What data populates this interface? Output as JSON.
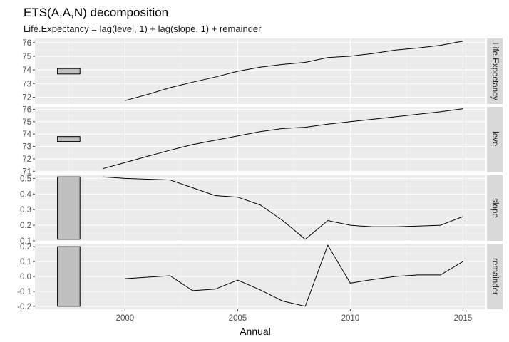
{
  "chart_data": {
    "type": "line",
    "title": "ETS(A,A,N) decomposition",
    "subtitle": "Life.Expectancy = lag(level, 1) + lag(slope, 1) + remainder",
    "xlabel": "Annual",
    "xlim": [
      1996,
      2016
    ],
    "x_ticks": [
      2000,
      2005,
      2010,
      2015
    ],
    "grid": true,
    "facets": [
      {
        "strip": "Life.Expectancy",
        "ylim": [
          71.5,
          76.3
        ],
        "y_ticks": [
          72,
          73,
          74,
          75,
          76
        ],
        "scale_bar": [
          73.7,
          74.1
        ],
        "x": [
          2000,
          2001,
          2002,
          2003,
          2004,
          2005,
          2006,
          2007,
          2008,
          2009,
          2010,
          2011,
          2012,
          2013,
          2014,
          2015
        ],
        "values": [
          71.75,
          72.2,
          72.7,
          73.1,
          73.47,
          73.9,
          74.2,
          74.4,
          74.55,
          74.9,
          75.0,
          75.2,
          75.45,
          75.6,
          75.8,
          76.1
        ]
      },
      {
        "strip": "level",
        "ylim": [
          70.9,
          76.2
        ],
        "y_ticks": [
          71,
          72,
          73,
          74,
          75,
          76
        ],
        "scale_bar": [
          73.4,
          73.8
        ],
        "x": [
          1999,
          2000,
          2001,
          2002,
          2003,
          2004,
          2005,
          2006,
          2007,
          2008,
          2009,
          2010,
          2011,
          2012,
          2013,
          2014,
          2015
        ],
        "values": [
          71.2,
          71.7,
          72.2,
          72.7,
          73.15,
          73.5,
          73.85,
          74.2,
          74.45,
          74.55,
          74.8,
          75.0,
          75.2,
          75.4,
          75.6,
          75.8,
          76.05
        ]
      },
      {
        "strip": "slope",
        "ylim": [
          0.1,
          0.52
        ],
        "y_ticks": [
          0.1,
          0.2,
          0.3,
          0.4,
          0.5
        ],
        "scale_bar": [
          0.11,
          0.51
        ],
        "x": [
          1999,
          2000,
          2001,
          2002,
          2003,
          2004,
          2005,
          2006,
          2007,
          2008,
          2009,
          2010,
          2011,
          2012,
          2013,
          2014,
          2015
        ],
        "values": [
          0.51,
          0.5,
          0.495,
          0.49,
          0.44,
          0.39,
          0.38,
          0.33,
          0.23,
          0.11,
          0.23,
          0.2,
          0.19,
          0.19,
          0.195,
          0.2,
          0.255
        ]
      },
      {
        "strip": "remainder",
        "ylim": [
          -0.22,
          0.22
        ],
        "y_ticks": [
          -0.2,
          -0.1,
          0.0,
          0.1,
          0.2
        ],
        "scale_bar": [
          -0.2,
          0.2
        ],
        "x": [
          2000,
          2001,
          2002,
          2003,
          2004,
          2005,
          2006,
          2007,
          2008,
          2009,
          2010,
          2011,
          2012,
          2013,
          2014,
          2015
        ],
        "values": [
          -0.015,
          -0.005,
          0.005,
          -0.095,
          -0.085,
          -0.025,
          -0.09,
          -0.165,
          -0.2,
          0.21,
          -0.045,
          -0.02,
          0.0,
          0.01,
          0.01,
          0.1
        ]
      }
    ]
  }
}
